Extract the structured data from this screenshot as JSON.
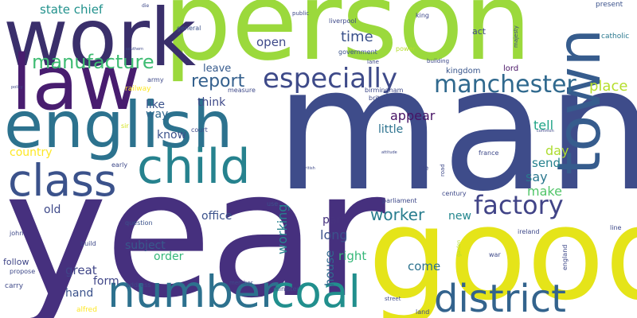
{
  "words": [
    {
      "text": "person",
      "color": "#9bd93c",
      "weight": 1.0
    },
    {
      "text": "man",
      "color": "#3e4c8a",
      "weight": 1.0
    },
    {
      "text": "year",
      "color": "#46307e",
      "weight": 1.0
    },
    {
      "text": "good",
      "color": "#e5e419",
      "weight": 0.9
    },
    {
      "text": "work",
      "color": "#3a2f6b",
      "weight": 0.75
    },
    {
      "text": "law",
      "color": "#481d6f",
      "weight": 0.75
    },
    {
      "text": "english",
      "color": "#2c728e",
      "weight": 0.7
    },
    {
      "text": "town",
      "color": "#365c8d",
      "weight": 0.6
    },
    {
      "text": "child",
      "color": "#26828e",
      "weight": 0.55
    },
    {
      "text": "class",
      "color": "#3b528b",
      "weight": 0.5
    },
    {
      "text": "number",
      "color": "#2d718e",
      "weight": 0.5
    },
    {
      "text": "coal",
      "color": "#218f8d",
      "weight": 0.5
    },
    {
      "text": "district",
      "color": "#33638d",
      "weight": 0.45
    },
    {
      "text": "especially",
      "color": "#3e4a89",
      "weight": 0.4
    },
    {
      "text": "manchester",
      "color": "#30698e",
      "weight": 0.35
    },
    {
      "text": "factory",
      "color": "#414487",
      "weight": 0.35
    },
    {
      "text": "manufacture",
      "color": "#3fbc73",
      "weight": 0.3
    },
    {
      "text": "worker",
      "color": "#287d8e",
      "weight": 0.25
    },
    {
      "text": "report",
      "color": "#34608d",
      "weight": 0.25
    },
    {
      "text": "place",
      "color": "#b5de2b",
      "weight": 0.2
    },
    {
      "text": "time",
      "color": "#3b528b",
      "weight": 0.2
    },
    {
      "text": "state chief",
      "color": "#21918c",
      "weight": 0.15
    },
    {
      "text": "open",
      "color": "#3e4989",
      "weight": 0.15
    },
    {
      "text": "leave",
      "color": "#375b8d",
      "weight": 0.15
    },
    {
      "text": "working",
      "color": "#26828e",
      "weight": 0.15
    },
    {
      "text": "house",
      "color": "#31688e",
      "weight": 0.15
    },
    {
      "text": "appear",
      "color": "#471365",
      "weight": 0.15
    },
    {
      "text": "tell",
      "color": "#20a486",
      "weight": 0.15
    },
    {
      "text": "day",
      "color": "#addc30",
      "weight": 0.15
    },
    {
      "text": "say",
      "color": "#2a788e",
      "weight": 0.15
    },
    {
      "text": "make",
      "color": "#52c569",
      "weight": 0.15
    },
    {
      "text": "send",
      "color": "#26828e",
      "weight": 0.15
    },
    {
      "text": "long",
      "color": "#3b528b",
      "weight": 0.15
    },
    {
      "text": "new",
      "color": "#24878e",
      "weight": 0.15
    },
    {
      "text": "right",
      "color": "#35b779",
      "weight": 0.15
    },
    {
      "text": "come",
      "color": "#2c728e",
      "weight": 0.15
    },
    {
      "text": "great",
      "color": "#404688",
      "weight": 0.15
    },
    {
      "text": "form",
      "color": "#404688",
      "weight": 0.15
    },
    {
      "text": "hand",
      "color": "#3b528b",
      "weight": 0.15
    },
    {
      "text": "order",
      "color": "#35b779",
      "weight": 0.15
    },
    {
      "text": "subject",
      "color": "#38598c",
      "weight": 0.15
    },
    {
      "text": "office",
      "color": "#3b528b",
      "weight": 0.15
    },
    {
      "text": "old",
      "color": "#3e4989",
      "weight": 0.15
    },
    {
      "text": "party",
      "color": "#46327e",
      "weight": 0.15
    },
    {
      "text": "country",
      "color": "#fde725",
      "weight": 0.15
    },
    {
      "text": "like",
      "color": "#3b528b",
      "weight": 0.15
    },
    {
      "text": "way",
      "color": "#31688e",
      "weight": 0.15
    },
    {
      "text": "think",
      "color": "#3e4989",
      "weight": 0.15
    },
    {
      "text": "know",
      "color": "#3b528b",
      "weight": 0.15
    },
    {
      "text": "little",
      "color": "#2c728e",
      "weight": 0.15
    },
    {
      "text": "kingdom",
      "color": "#39568c",
      "weight": 0.1
    },
    {
      "text": "lord",
      "color": "#471164",
      "weight": 0.1
    },
    {
      "text": "act",
      "color": "#3e4989",
      "weight": 0.1
    },
    {
      "text": "present",
      "color": "#3b528b",
      "weight": 0.1
    },
    {
      "text": "catholic",
      "color": "#2a788e",
      "weight": 0.1
    },
    {
      "text": "general",
      "color": "#3b528b",
      "weight": 0.1
    },
    {
      "text": "army",
      "color": "#3e4989",
      "weight": 0.1
    },
    {
      "text": "railway",
      "color": "#fde725",
      "weight": 0.1
    },
    {
      "text": "sir",
      "color": "#d2e21b",
      "weight": 0.1
    },
    {
      "text": "early",
      "color": "#3e4989",
      "weight": 0.1
    },
    {
      "text": "court",
      "color": "#3e4989",
      "weight": 0.1
    },
    {
      "text": "question",
      "color": "#3b528b",
      "weight": 0.1
    },
    {
      "text": "use",
      "color": "#3b528b",
      "weight": 0.1
    },
    {
      "text": "liverpool",
      "color": "#3e4989",
      "weight": 0.1
    },
    {
      "text": "government",
      "color": "#3b528b",
      "weight": 0.1
    },
    {
      "text": "britain",
      "color": "#3e4989",
      "weight": 0.1
    },
    {
      "text": "birmingham",
      "color": "#3e4989",
      "weight": 0.1
    },
    {
      "text": "measure",
      "color": "#3e4989",
      "weight": 0.1
    },
    {
      "text": "power",
      "color": "#b5de2b",
      "weight": 0.1
    },
    {
      "text": "building",
      "color": "#3e4989",
      "weight": 0.1
    },
    {
      "text": "king",
      "color": "#3e4989",
      "weight": 0.1
    },
    {
      "text": "majesty",
      "color": "#3e4989",
      "weight": 0.1
    },
    {
      "text": "public",
      "color": "#3e4989",
      "weight": 0.1
    },
    {
      "text": "lane",
      "color": "#3e4989",
      "weight": 0.1
    },
    {
      "text": "france",
      "color": "#3e4989",
      "weight": 0.1
    },
    {
      "text": "life",
      "color": "#3e4989",
      "weight": 0.1
    },
    {
      "text": "road",
      "color": "#3e4989",
      "weight": 0.1
    },
    {
      "text": "parliament",
      "color": "#3e4989",
      "weight": 0.1
    },
    {
      "text": "century",
      "color": "#3e4989",
      "weight": 0.1
    },
    {
      "text": "line",
      "color": "#3e4989",
      "weight": 0.1
    },
    {
      "text": "ireland",
      "color": "#3e4989",
      "weight": 0.1
    },
    {
      "text": "england",
      "color": "#3e4989",
      "weight": 0.1
    },
    {
      "text": "war",
      "color": "#3e4989",
      "weight": 0.1
    },
    {
      "text": "garden",
      "color": "#b5de2b",
      "weight": 0.1
    },
    {
      "text": "john",
      "color": "#3e4989",
      "weight": 0.1
    },
    {
      "text": "build",
      "color": "#3e4989",
      "weight": 0.1
    },
    {
      "text": "follow",
      "color": "#404688",
      "weight": 0.1
    },
    {
      "text": "propose",
      "color": "#3e4989",
      "weight": 0.1
    },
    {
      "text": "carry",
      "color": "#3e4989",
      "weight": 0.1
    },
    {
      "text": "alfred",
      "color": "#fde725",
      "weight": 0.1
    },
    {
      "text": "address",
      "color": "#3e4989",
      "weight": 0.1
    },
    {
      "text": "member",
      "color": "#3e4989",
      "weight": 0.1
    },
    {
      "text": "minister",
      "color": "#3e4989",
      "weight": 0.1
    },
    {
      "text": "street",
      "color": "#3e4989",
      "weight": 0.1
    },
    {
      "text": "land",
      "color": "#3e4989",
      "weight": 0.1
    },
    {
      "text": "die",
      "color": "#3e4989",
      "weight": 0.05
    },
    {
      "text": "southern",
      "color": "#3e4989",
      "weight": 0.05
    },
    {
      "text": "policy",
      "color": "#3e4989",
      "weight": 0.05
    },
    {
      "text": "attitude",
      "color": "#3e4989",
      "weight": 0.05
    },
    {
      "text": "british",
      "color": "#3e4989",
      "weight": 0.05
    },
    {
      "text": "common",
      "color": "#3e4989",
      "weight": 0.05
    }
  ]
}
